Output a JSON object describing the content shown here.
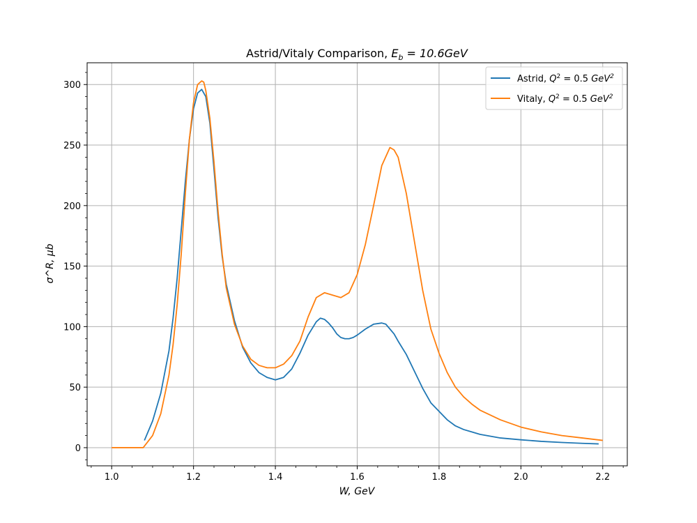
{
  "chart_data": {
    "type": "line",
    "title": "Astrid/Vitaly Comparison, E_b = 10.6GeV",
    "title_parts": {
      "prefix": "Astrid/Vitaly Comparison, ",
      "var": "E",
      "sub": "b",
      "rest": " = 10.6GeV"
    },
    "xlabel": "W, GeV",
    "ylabel": "σ^R, μb",
    "xlim": [
      0.94,
      2.26
    ],
    "ylim": [
      -15,
      318
    ],
    "xticks": [
      1.0,
      1.2,
      1.4,
      1.6,
      1.8,
      2.0,
      2.2
    ],
    "xtick_labels": [
      "1.0",
      "1.2",
      "1.4",
      "1.6",
      "1.8",
      "2.0",
      "2.2"
    ],
    "yticks": [
      0,
      50,
      100,
      150,
      200,
      250,
      300
    ],
    "ytick_labels": [
      "0",
      "50",
      "100",
      "150",
      "200",
      "250",
      "300"
    ],
    "grid": true,
    "legend_position": "top-right",
    "series": [
      {
        "name": "Astrid, Q² = 0.5 GeV²",
        "legend": {
          "prefix": "Astrid, ",
          "q": "Q",
          "sup": "2",
          "mid": " = 0.5 ",
          "unit": "GeV",
          "unit_sup": "2"
        },
        "color": "#1f77b4",
        "x": [
          1.08,
          1.1,
          1.12,
          1.14,
          1.15,
          1.16,
          1.17,
          1.18,
          1.19,
          1.2,
          1.21,
          1.22,
          1.23,
          1.24,
          1.25,
          1.26,
          1.27,
          1.28,
          1.3,
          1.32,
          1.34,
          1.36,
          1.38,
          1.4,
          1.42,
          1.44,
          1.46,
          1.48,
          1.5,
          1.51,
          1.52,
          1.53,
          1.54,
          1.55,
          1.56,
          1.57,
          1.58,
          1.59,
          1.6,
          1.62,
          1.64,
          1.66,
          1.67,
          1.68,
          1.69,
          1.7,
          1.72,
          1.74,
          1.76,
          1.78,
          1.8,
          1.82,
          1.84,
          1.86,
          1.88,
          1.9,
          1.95,
          2.0,
          2.05,
          2.1,
          2.15,
          2.19
        ],
        "y": [
          6,
          22,
          45,
          80,
          107,
          140,
          180,
          220,
          255,
          280,
          293,
          296,
          290,
          268,
          230,
          190,
          158,
          135,
          105,
          83,
          70,
          62,
          58,
          56,
          58,
          65,
          78,
          93,
          104,
          107,
          106,
          103,
          99,
          94,
          91,
          90,
          90,
          91,
          93,
          98,
          102,
          103,
          102,
          98,
          94,
          88,
          77,
          63,
          49,
          37,
          30,
          23,
          18,
          15,
          13,
          11,
          8,
          6.5,
          5.2,
          4.3,
          3.6,
          3.1
        ]
      },
      {
        "name": "Vitaly, Q² = 0.5 GeV²",
        "legend": {
          "prefix": "Vitaly, ",
          "q": "Q",
          "sup": "2",
          "mid": " = 0.5 ",
          "unit": "GeV",
          "unit_sup": "2"
        },
        "color": "#ff7f0e",
        "x": [
          1.0,
          1.04,
          1.077,
          1.1,
          1.12,
          1.14,
          1.15,
          1.16,
          1.17,
          1.18,
          1.19,
          1.2,
          1.21,
          1.22,
          1.225,
          1.23,
          1.24,
          1.25,
          1.26,
          1.27,
          1.28,
          1.3,
          1.32,
          1.34,
          1.36,
          1.38,
          1.4,
          1.42,
          1.44,
          1.46,
          1.48,
          1.5,
          1.52,
          1.54,
          1.56,
          1.58,
          1.6,
          1.62,
          1.64,
          1.66,
          1.68,
          1.69,
          1.7,
          1.72,
          1.74,
          1.76,
          1.78,
          1.8,
          1.82,
          1.84,
          1.86,
          1.88,
          1.9,
          1.95,
          2.0,
          2.05,
          2.1,
          2.15,
          2.2
        ],
        "y": [
          0,
          0,
          0,
          10,
          28,
          60,
          85,
          118,
          160,
          210,
          255,
          285,
          300,
          303,
          302,
          295,
          272,
          236,
          195,
          160,
          132,
          102,
          84,
          73,
          68,
          66,
          66,
          69,
          76,
          88,
          108,
          124,
          128,
          126,
          124,
          128,
          143,
          168,
          200,
          233,
          248,
          246,
          240,
          210,
          170,
          130,
          98,
          78,
          62,
          50,
          42,
          36,
          31,
          23,
          17,
          13,
          10,
          8,
          6
        ]
      }
    ]
  }
}
